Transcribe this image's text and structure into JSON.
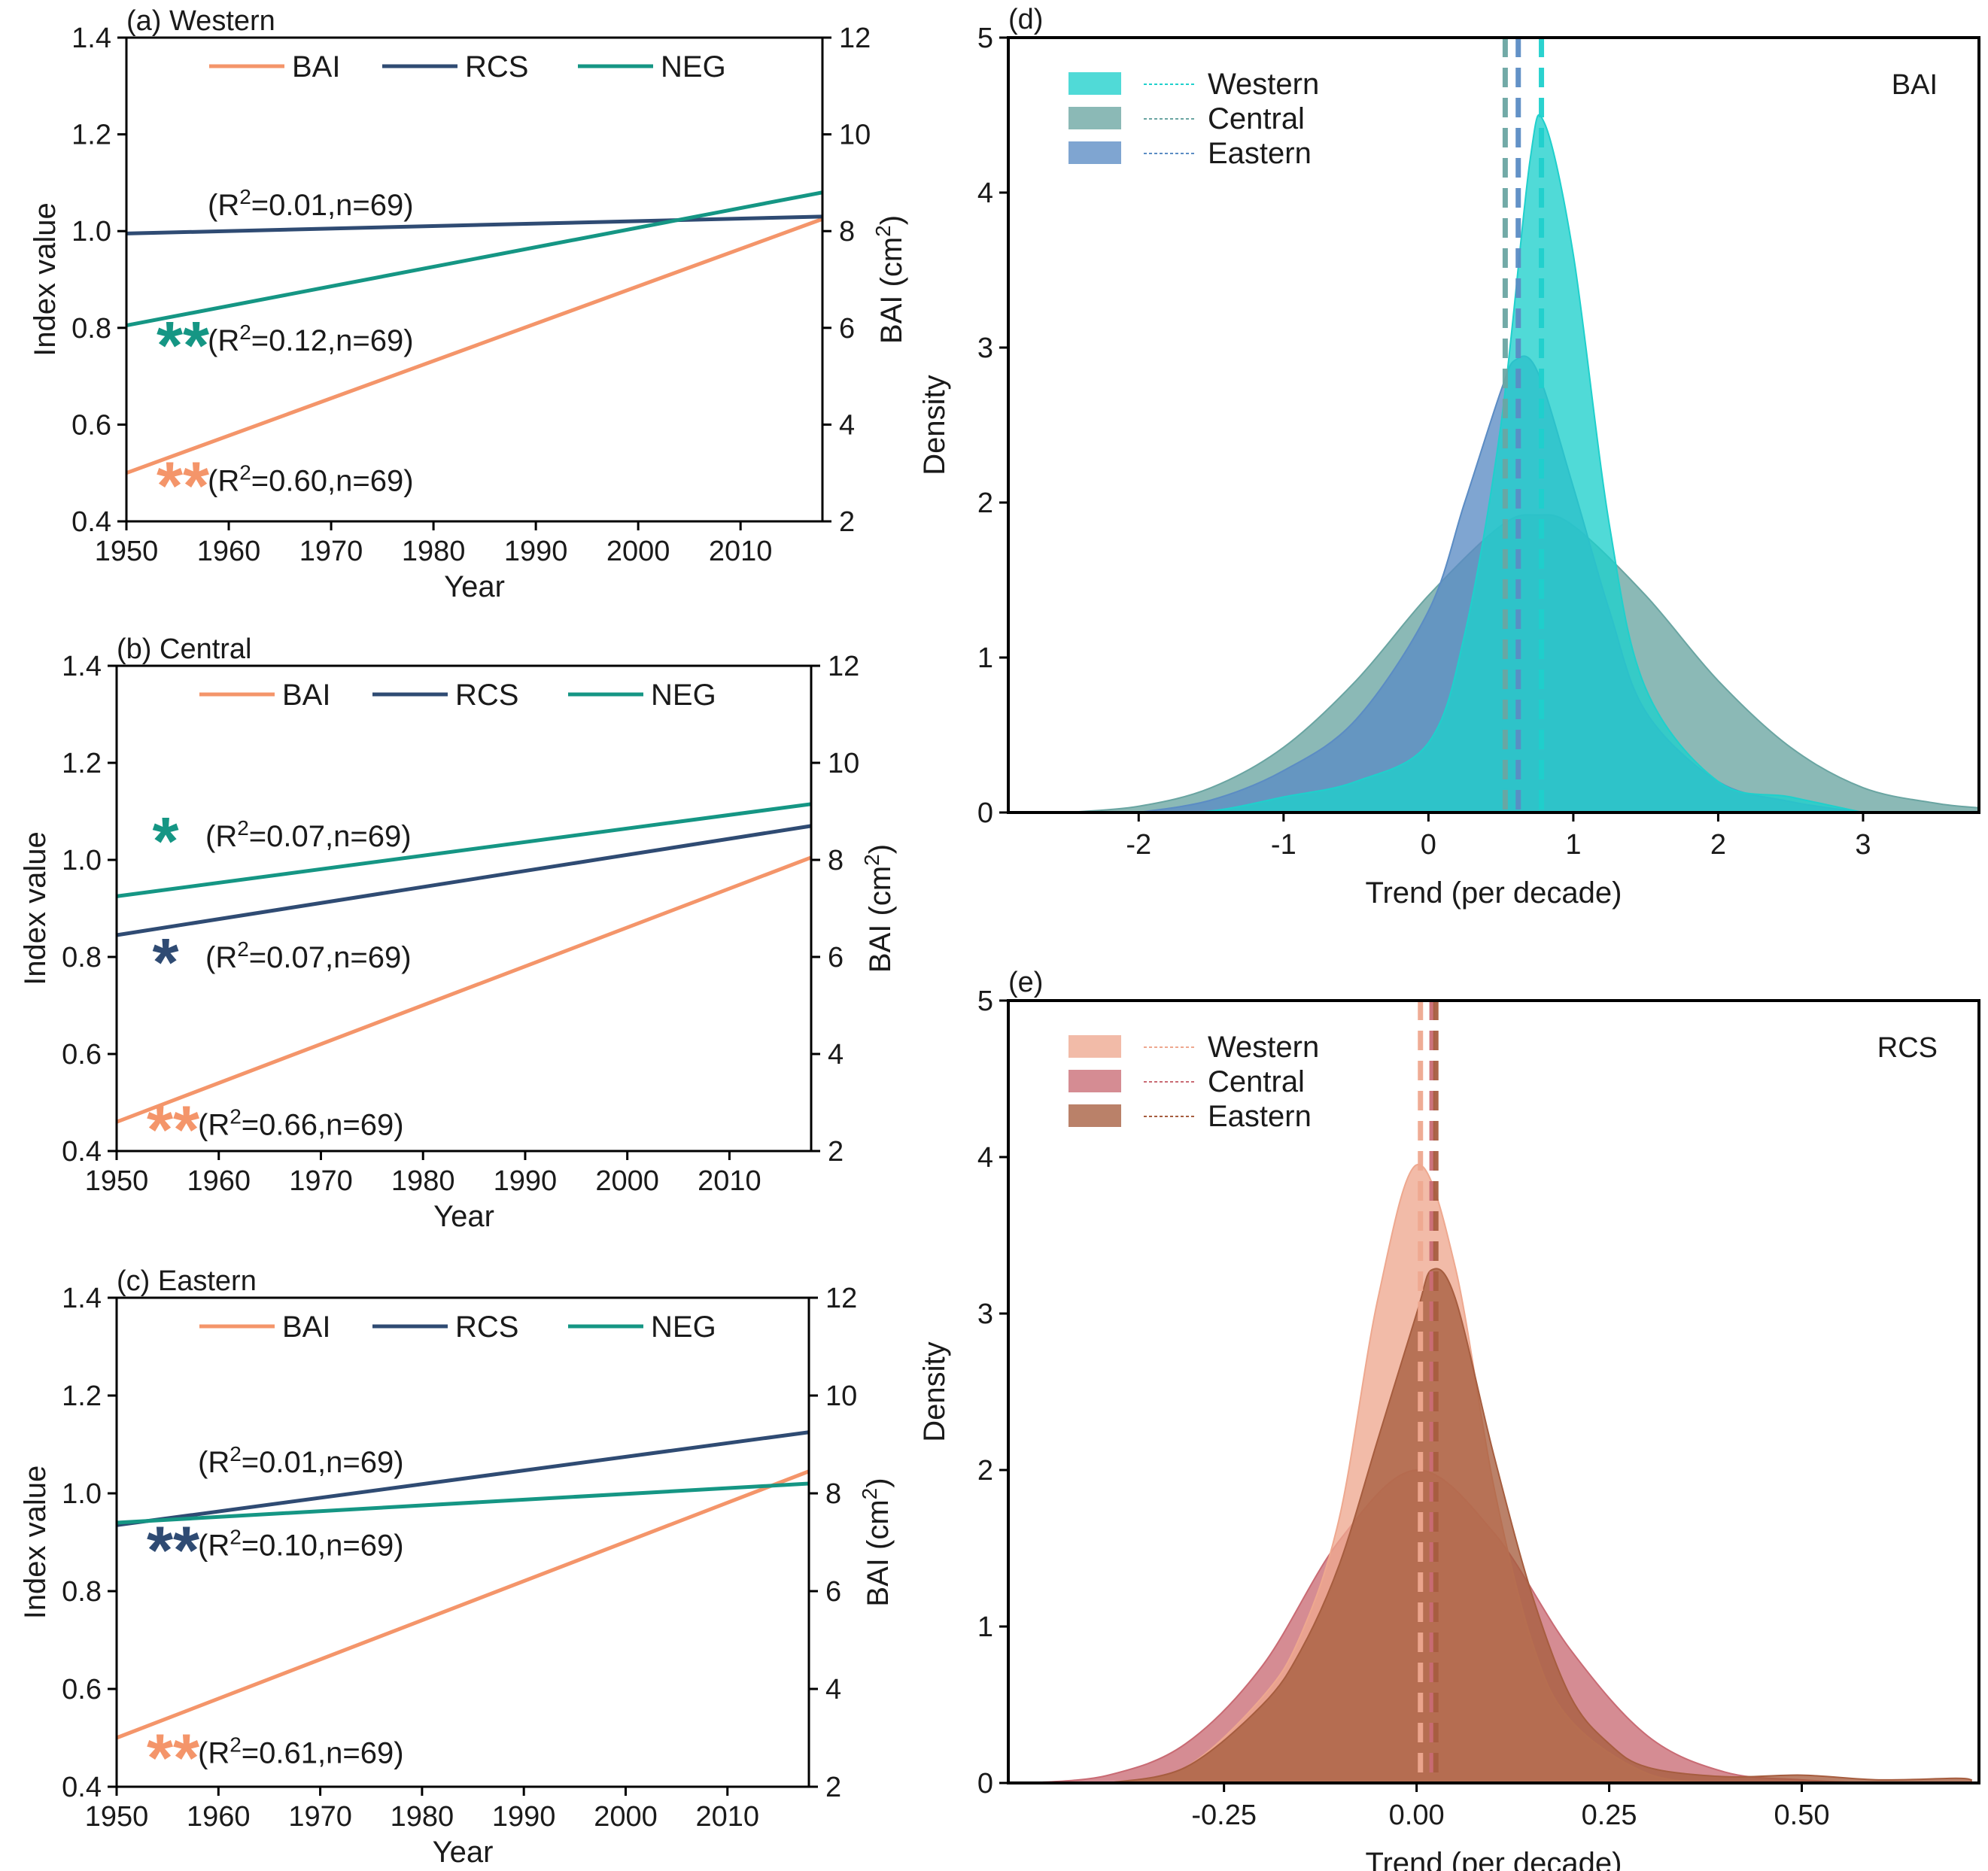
{
  "chart_data": [
    {
      "panel": "(a) Western",
      "type": "line",
      "xlabel": "Year",
      "ylabel_left": "Index value",
      "ylabel_right": "BAI (cm²)",
      "xlim": [
        1950,
        2018
      ],
      "ylim_left": [
        0.4,
        1.4
      ],
      "ylim_right": [
        2,
        12
      ],
      "x_ticks": [
        "1950",
        "1960",
        "1970",
        "1980",
        "1990",
        "2000",
        "2010"
      ],
      "y_ticks_left": [
        "0.4",
        "0.6",
        "0.8",
        "1.0",
        "1.2",
        "1.4"
      ],
      "y_ticks_right": [
        "2",
        "4",
        "6",
        "8",
        "10",
        "12"
      ],
      "legend": [
        "BAI",
        "RCS",
        "NEG"
      ],
      "series": [
        {
          "name": "BAI",
          "axis": "right",
          "color": "#f4956a",
          "x": [
            1950,
            2018
          ],
          "y": [
            3.0,
            8.25
          ]
        },
        {
          "name": "RCS",
          "axis": "left",
          "color": "#2f4b73",
          "x": [
            1950,
            2018
          ],
          "y": [
            0.995,
            1.03
          ]
        },
        {
          "name": "NEG",
          "axis": "left",
          "color": "#159684",
          "x": [
            1950,
            2018
          ],
          "y": [
            0.805,
            1.08
          ]
        }
      ],
      "annotations": [
        {
          "series": "RCS",
          "stars": "",
          "text": "(R²=0.01,n=69)",
          "y_data": 1.055
        },
        {
          "series": "NEG",
          "stars": "**",
          "text": "(R²=0.12,n=69)",
          "y_data": 0.775
        },
        {
          "series": "BAI",
          "stars": "**",
          "text": "(R²=0.60,n=69)",
          "y_data": 0.485
        }
      ]
    },
    {
      "panel": "(b) Central",
      "type": "line",
      "xlabel": "Year",
      "ylabel_left": "Index value",
      "ylabel_right": "BAI (cm²)",
      "xlim": [
        1950,
        2018
      ],
      "ylim_left": [
        0.4,
        1.4
      ],
      "ylim_right": [
        2,
        12
      ],
      "x_ticks": [
        "1950",
        "1960",
        "1970",
        "1980",
        "1990",
        "2000",
        "2010"
      ],
      "y_ticks_left": [
        "0.4",
        "0.6",
        "0.8",
        "1.0",
        "1.2",
        "1.4"
      ],
      "y_ticks_right": [
        "2",
        "4",
        "6",
        "8",
        "10",
        "12"
      ],
      "legend": [
        "BAI",
        "RCS",
        "NEG"
      ],
      "series": [
        {
          "name": "BAI",
          "axis": "right",
          "color": "#f4956a",
          "x": [
            1950,
            2018
          ],
          "y": [
            2.6,
            8.05
          ]
        },
        {
          "name": "RCS",
          "axis": "left",
          "color": "#2f4b73",
          "x": [
            1950,
            2018
          ],
          "y": [
            0.845,
            1.07
          ]
        },
        {
          "name": "NEG",
          "axis": "left",
          "color": "#159684",
          "x": [
            1950,
            2018
          ],
          "y": [
            0.925,
            1.115
          ]
        }
      ],
      "annotations": [
        {
          "series": "NEG",
          "stars": "*",
          "text": "(R²=0.07,n=69)",
          "y_data": 1.05
        },
        {
          "series": "RCS",
          "stars": "*",
          "text": "(R²=0.07,n=69)",
          "y_data": 0.8
        },
        {
          "series": "BAI",
          "stars": "**",
          "text": "(R²=0.66,n=69)",
          "y_data": 0.455
        }
      ]
    },
    {
      "panel": "(c) Eastern",
      "type": "line",
      "xlabel": "Year",
      "ylabel_left": "Index value",
      "ylabel_right": "BAI (cm²)",
      "xlim": [
        1950,
        2018
      ],
      "ylim_left": [
        0.4,
        1.4
      ],
      "ylim_right": [
        2,
        12
      ],
      "x_ticks": [
        "1950",
        "1960",
        "1970",
        "1980",
        "1990",
        "2000",
        "2010"
      ],
      "y_ticks_left": [
        "0.4",
        "0.6",
        "0.8",
        "1.0",
        "1.2",
        "1.4"
      ],
      "y_ticks_right": [
        "2",
        "4",
        "6",
        "8",
        "10",
        "12"
      ],
      "legend": [
        "BAI",
        "RCS",
        "NEG"
      ],
      "series": [
        {
          "name": "BAI",
          "axis": "right",
          "color": "#f4956a",
          "x": [
            1950,
            2018
          ],
          "y": [
            3.0,
            8.45
          ]
        },
        {
          "name": "RCS",
          "axis": "left",
          "color": "#2f4b73",
          "x": [
            1950,
            2018
          ],
          "y": [
            0.935,
            1.125
          ]
        },
        {
          "name": "NEG",
          "axis": "left",
          "color": "#159684",
          "x": [
            1950,
            2018
          ],
          "y": [
            0.94,
            1.02
          ]
        }
      ],
      "annotations": [
        {
          "series": "RCS",
          "stars": "",
          "text": "(R²=0.01,n=69)",
          "y_data": 1.065
        },
        {
          "series": "RCS",
          "stars": "**",
          "text": "(R²=0.10,n=69)",
          "y_data": 0.895
        },
        {
          "series": "BAI",
          "stars": "**",
          "text": "(R²=0.61,n=69)",
          "y_data": 0.47
        }
      ]
    },
    {
      "panel": "(d)",
      "tag": "BAI",
      "type": "area",
      "xlabel": "Trend (per decade)",
      "ylabel": "Density",
      "xlim": [
        -2.9,
        3.8
      ],
      "ylim": [
        0,
        5
      ],
      "x_ticks": [
        -2,
        -1,
        0,
        1,
        2,
        3
      ],
      "x_tick_labels": [
        "-2",
        "-1",
        "0",
        "1",
        "2",
        "3"
      ],
      "y_ticks": [
        0,
        1,
        2,
        3,
        4,
        5
      ],
      "legend": [
        "Western",
        "Central",
        "Eastern"
      ],
      "series": [
        {
          "name": "Central",
          "color": "#6aa5a2",
          "mean_line": 0.53,
          "x": [
            -2.5,
            -2.0,
            -1.5,
            -1.0,
            -0.5,
            0.0,
            0.5,
            0.75,
            1.0,
            1.5,
            2.0,
            2.5,
            3.0,
            3.5,
            3.8
          ],
          "y": [
            0.0,
            0.04,
            0.16,
            0.42,
            0.85,
            1.4,
            1.85,
            1.92,
            1.85,
            1.4,
            0.85,
            0.42,
            0.16,
            0.06,
            0.03
          ]
        },
        {
          "name": "Eastern",
          "color": "#5b8cc4",
          "mean_line": 0.62,
          "x": [
            -2.0,
            -1.5,
            -1.0,
            -0.5,
            0.0,
            0.25,
            0.5,
            0.6,
            0.75,
            1.0,
            1.25,
            1.5,
            2.0,
            2.5,
            3.0
          ],
          "y": [
            0.0,
            0.08,
            0.27,
            0.6,
            1.3,
            2.0,
            2.72,
            2.92,
            2.85,
            2.1,
            1.3,
            0.65,
            0.2,
            0.07,
            0.0
          ]
        },
        {
          "name": "Western",
          "color": "#1fd0cc",
          "mean_line": 0.78,
          "x": [
            -2.0,
            -1.5,
            -1.0,
            -0.5,
            0.0,
            0.25,
            0.5,
            0.7,
            0.8,
            1.0,
            1.25,
            1.5,
            2.0,
            2.5,
            3.0
          ],
          "y": [
            0.0,
            0.01,
            0.1,
            0.2,
            0.45,
            1.15,
            2.5,
            4.2,
            4.45,
            3.6,
            1.85,
            0.8,
            0.2,
            0.1,
            0.0
          ]
        }
      ]
    },
    {
      "panel": "(e)",
      "tag": "RCS",
      "type": "area",
      "xlabel": "Trend (per decade)",
      "ylabel": "Density",
      "xlim": [
        -0.53,
        0.73
      ],
      "ylim": [
        0,
        5
      ],
      "x_ticks": [
        -0.25,
        0.0,
        0.25,
        0.5
      ],
      "x_tick_labels": [
        "-0.25",
        "0.00",
        "0.25",
        "0.50"
      ],
      "y_ticks": [
        0,
        1,
        2,
        3,
        4,
        5
      ],
      "legend": [
        "Western",
        "Central",
        "Eastern"
      ],
      "series": [
        {
          "name": "Central",
          "color": "#c96b74",
          "mean_line": 0.02,
          "x": [
            -0.5,
            -0.4,
            -0.3,
            -0.2,
            -0.1,
            0.0,
            0.1,
            0.2,
            0.3,
            0.4,
            0.5,
            0.6,
            0.72
          ],
          "y": [
            0.0,
            0.05,
            0.25,
            0.75,
            1.55,
            2.0,
            1.6,
            0.85,
            0.3,
            0.07,
            0.02,
            0.0,
            0.0
          ]
        },
        {
          "name": "Western",
          "color": "#eea88f",
          "mean_line": 0.005,
          "x": [
            -0.4,
            -0.3,
            -0.2,
            -0.15,
            -0.1,
            -0.05,
            0.0,
            0.05,
            0.1,
            0.15,
            0.2,
            0.3,
            0.4
          ],
          "y": [
            0.0,
            0.1,
            0.55,
            0.95,
            1.7,
            3.1,
            3.95,
            3.3,
            1.9,
            0.9,
            0.4,
            0.06,
            0.0
          ]
        },
        {
          "name": "Eastern",
          "color": "#a65d3f",
          "mean_line": 0.025,
          "x": [
            -0.4,
            -0.3,
            -0.2,
            -0.15,
            -0.1,
            -0.05,
            0.0,
            0.02,
            0.05,
            0.1,
            0.15,
            0.2,
            0.25,
            0.3,
            0.4,
            0.5,
            0.6,
            0.7,
            0.72
          ],
          "y": [
            0.0,
            0.1,
            0.5,
            0.85,
            1.4,
            2.2,
            3.0,
            3.28,
            3.1,
            2.1,
            1.2,
            0.55,
            0.25,
            0.1,
            0.04,
            0.05,
            0.02,
            0.03,
            0.02
          ]
        }
      ]
    }
  ]
}
